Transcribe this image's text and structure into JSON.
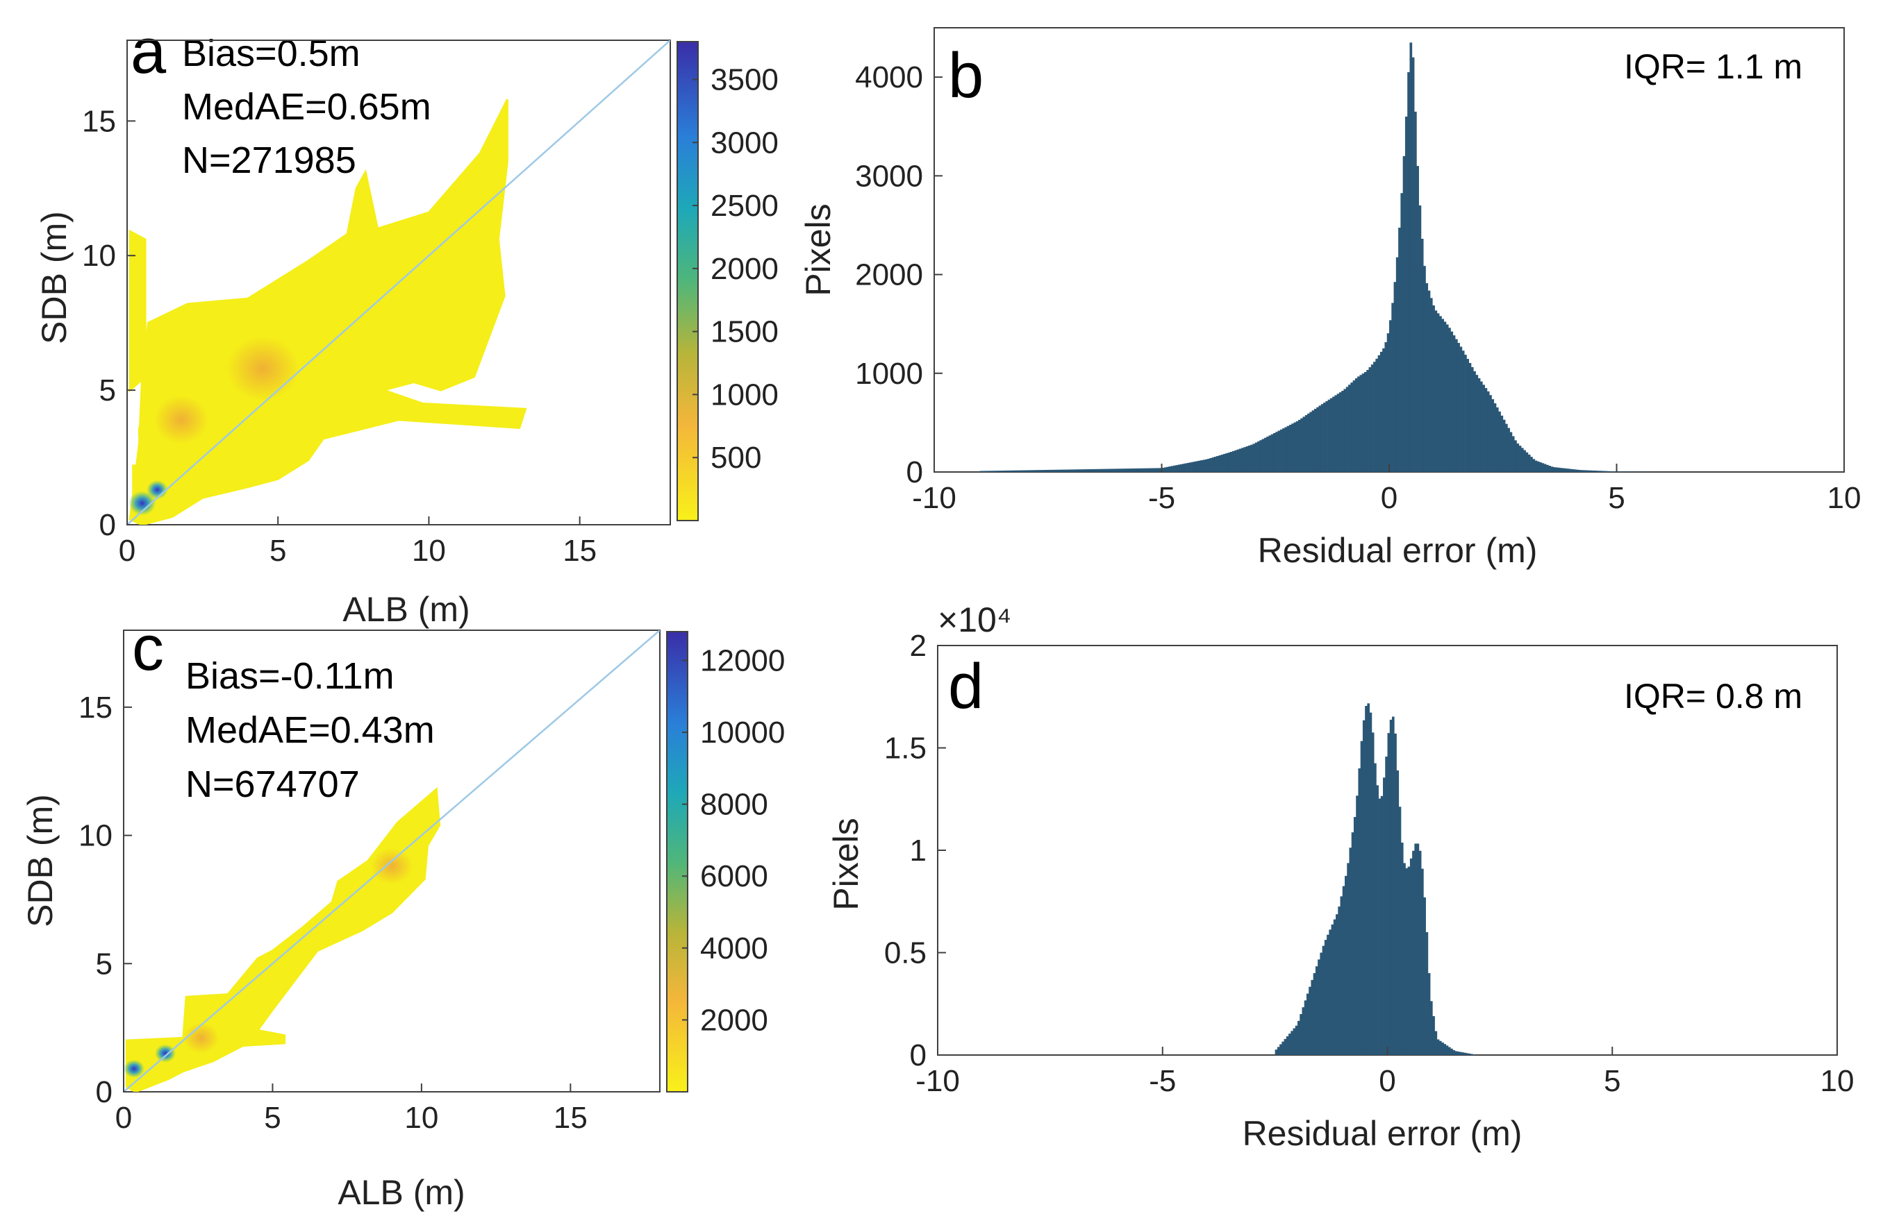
{
  "colors": {
    "axis": "#404040",
    "bar": "#2b5776",
    "identity_line": "#9ec9e6",
    "density_low": "#f5ee18",
    "density_mid": "#f0a53a",
    "density_high": "#3c40c8"
  },
  "chart_data": [
    {
      "id": "a",
      "type": "heatmap",
      "panel_label": "a",
      "xlabel": "ALB (m)",
      "ylabel": "SDB (m)",
      "xlim": [
        0,
        18
      ],
      "ylim": [
        0,
        18
      ],
      "xticks": [
        "0",
        "5",
        "10",
        "15"
      ],
      "yticks": [
        "0",
        "5",
        "10",
        "15"
      ],
      "identity_line": true,
      "stats": [
        "Bias=0.5m",
        "MedAE=0.65m",
        "N=271985"
      ],
      "colorbar": {
        "min": 0,
        "max": 3800,
        "ticks": [
          "500",
          "1000",
          "1500",
          "2000",
          "2500",
          "3000",
          "3500"
        ]
      },
      "density_regions": [
        {
          "level": "low",
          "points": [
            [
              0.1,
              0.2
            ],
            [
              0.4,
              3.0
            ],
            [
              0.5,
              5.5
            ],
            [
              0.7,
              7.5
            ],
            [
              2.0,
              8.2
            ],
            [
              4.0,
              8.4
            ],
            [
              6.0,
              9.8
            ],
            [
              7.3,
              10.8
            ],
            [
              7.6,
              12.5
            ],
            [
              7.9,
              13.1
            ],
            [
              8.3,
              11.0
            ],
            [
              10.0,
              11.6
            ],
            [
              11.7,
              13.8
            ],
            [
              12.6,
              15.8
            ],
            [
              12.6,
              13.5
            ],
            [
              12.3,
              10.6
            ],
            [
              12.5,
              8.5
            ],
            [
              11.5,
              5.5
            ],
            [
              10.4,
              5.0
            ],
            [
              9.5,
              5.3
            ],
            [
              8.5,
              5.0
            ],
            [
              9.8,
              4.5
            ],
            [
              13.2,
              4.3
            ],
            [
              13.0,
              3.6
            ],
            [
              9.0,
              3.9
            ],
            [
              6.5,
              3.2
            ],
            [
              6.0,
              2.4
            ],
            [
              5.0,
              1.7
            ],
            [
              4.0,
              1.4
            ],
            [
              2.5,
              1.0
            ],
            [
              1.5,
              0.3
            ],
            [
              0.5,
              0.0
            ]
          ]
        },
        {
          "level": "low",
          "points": [
            [
              0.1,
              10.9
            ],
            [
              0.6,
              10.6
            ],
            [
              0.6,
              5.5
            ],
            [
              0.1,
              5.0
            ]
          ]
        },
        {
          "level": "low",
          "points": [
            [
              0.2,
              2.2
            ],
            [
              1.8,
              2.0
            ],
            [
              1.6,
              1.0
            ],
            [
              0.2,
              1.2
            ]
          ]
        },
        {
          "level": "low",
          "points": [
            [
              0.4,
              3.6
            ],
            [
              2.5,
              3.5
            ],
            [
              2.5,
              3.3
            ],
            [
              0.4,
              3.3
            ]
          ]
        }
      ],
      "hotspots": [
        {
          "x": 1.8,
          "y": 3.9,
          "r": 0.9,
          "level": "mid"
        },
        {
          "x": 4.5,
          "y": 5.8,
          "r": 1.2,
          "level": "mid"
        },
        {
          "x": 0.5,
          "y": 0.8,
          "r": 0.45,
          "level": "high"
        },
        {
          "x": 1.0,
          "y": 1.3,
          "r": 0.35,
          "level": "high"
        }
      ]
    },
    {
      "id": "b",
      "type": "bar",
      "panel_label": "b",
      "xlabel": "Residual error (m)",
      "ylabel": "Pixels",
      "xlim": [
        -10,
        10
      ],
      "ylim": [
        0,
        4500
      ],
      "xticks": [
        "-10",
        "-5",
        "0",
        "5",
        "10"
      ],
      "yticks": [
        "0",
        "1000",
        "2000",
        "3000",
        "4000"
      ],
      "annotation": "IQR= 1.1 m",
      "multiplier_label": "",
      "bin_centers": [
        -9.0,
        -5.0,
        -4.0,
        -3.5,
        -3.0,
        -2.5,
        -2.0,
        -1.5,
        -1.2,
        -1.0,
        -0.7,
        -0.5,
        -0.3,
        -0.1,
        0.0,
        0.1,
        0.2,
        0.3,
        0.4,
        0.45,
        0.5,
        0.55,
        0.6,
        0.7,
        0.8,
        1.0,
        1.3,
        1.6,
        1.9,
        2.2,
        2.5,
        2.8,
        3.2,
        3.6,
        4.2,
        5.0,
        6.0
      ],
      "values": [
        10,
        40,
        130,
        200,
        280,
        400,
        520,
        680,
        770,
        830,
        960,
        1020,
        1130,
        1270,
        1450,
        1800,
        2300,
        3000,
        3800,
        4300,
        4400,
        4000,
        3300,
        2500,
        1950,
        1650,
        1480,
        1250,
        1000,
        800,
        550,
        300,
        120,
        50,
        20,
        5,
        0
      ]
    },
    {
      "id": "c",
      "type": "heatmap",
      "panel_label": "c",
      "xlabel": "ALB (m)",
      "ylabel": "SDB (m)",
      "xlim": [
        0,
        18
      ],
      "ylim": [
        0,
        18
      ],
      "xticks": [
        "0",
        "5",
        "10",
        "15"
      ],
      "yticks": [
        "0",
        "5",
        "10",
        "15"
      ],
      "identity_line": true,
      "stats": [
        "Bias=-0.11m",
        "MedAE=0.43m",
        "N=674707"
      ],
      "colorbar": {
        "min": 0,
        "max": 12800,
        "ticks": [
          "2000",
          "4000",
          "6000",
          "8000",
          "10000",
          "12000"
        ]
      },
      "density_regions": [
        {
          "level": "low",
          "points": [
            [
              0.1,
              0.2
            ],
            [
              0.1,
              2.0
            ],
            [
              2.0,
              2.1
            ],
            [
              2.1,
              3.7
            ],
            [
              3.5,
              3.8
            ],
            [
              4.5,
              5.2
            ],
            [
              5.0,
              5.5
            ],
            [
              6.0,
              6.4
            ],
            [
              7.0,
              7.4
            ],
            [
              7.2,
              8.2
            ],
            [
              8.2,
              9.0
            ],
            [
              9.2,
              10.5
            ],
            [
              10.5,
              11.8
            ],
            [
              10.6,
              10.4
            ],
            [
              10.2,
              9.6
            ],
            [
              10.1,
              8.3
            ],
            [
              9.0,
              7.0
            ],
            [
              8.0,
              6.3
            ],
            [
              6.5,
              5.5
            ],
            [
              5.0,
              3.2
            ],
            [
              4.5,
              2.4
            ],
            [
              5.4,
              2.2
            ],
            [
              5.4,
              1.9
            ],
            [
              4.0,
              1.8
            ],
            [
              3.0,
              1.2
            ],
            [
              2.0,
              0.8
            ],
            [
              1.5,
              0.5
            ],
            [
              0.4,
              0.0
            ]
          ]
        }
      ],
      "hotspots": [
        {
          "x": 2.6,
          "y": 2.1,
          "r": 0.6,
          "level": "mid"
        },
        {
          "x": 9.0,
          "y": 8.8,
          "r": 0.7,
          "level": "mid"
        },
        {
          "x": 0.35,
          "y": 0.9,
          "r": 0.35,
          "level": "high"
        },
        {
          "x": 1.4,
          "y": 1.5,
          "r": 0.35,
          "level": "high"
        }
      ]
    },
    {
      "id": "d",
      "type": "bar",
      "panel_label": "d",
      "xlabel": "Residual error (m)",
      "ylabel": "Pixels",
      "xlim": [
        -10,
        10
      ],
      "ylim": [
        0,
        20000
      ],
      "xticks": [
        "-10",
        "-5",
        "0",
        "5",
        "10"
      ],
      "yticks": [
        "0",
        "0.5",
        "1",
        "1.5",
        "2"
      ],
      "annotation": "IQR= 0.8 m",
      "multiplier_label": "×10⁴",
      "bin_centers": [
        -2.5,
        -2.0,
        -1.7,
        -1.4,
        -1.1,
        -0.9,
        -0.7,
        -0.55,
        -0.45,
        -0.35,
        -0.25,
        -0.15,
        -0.05,
        0.05,
        0.15,
        0.25,
        0.35,
        0.45,
        0.55,
        0.65,
        0.75,
        0.85,
        0.95,
        1.1,
        1.5,
        2.0
      ],
      "values": [
        200,
        1500,
        3500,
        5500,
        7000,
        9000,
        12000,
        16000,
        17400,
        16500,
        13500,
        12200,
        14000,
        16300,
        16600,
        13000,
        9500,
        9000,
        9800,
        10500,
        9800,
        7000,
        3000,
        800,
        200,
        0
      ]
    }
  ]
}
